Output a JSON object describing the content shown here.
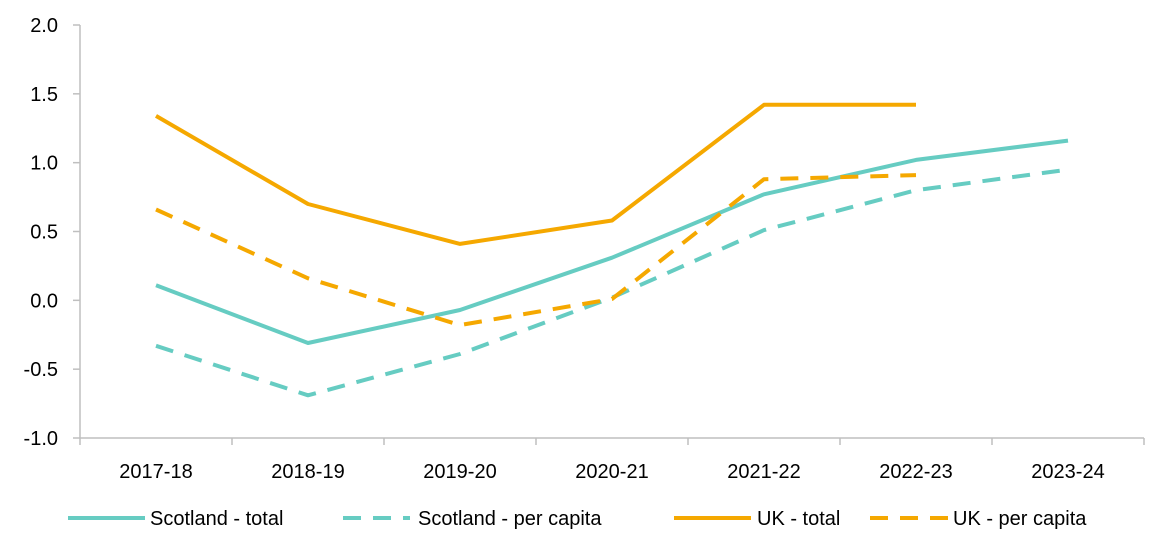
{
  "chart_data": {
    "type": "line",
    "categories": [
      "2017-18",
      "2018-19",
      "2019-20",
      "2020-21",
      "2021-22",
      "2022-23",
      "2023-24"
    ],
    "ylim": [
      -1.0,
      2.0
    ],
    "yticks": [
      "2.0",
      "1.5",
      "1.0",
      "0.5",
      "0.0",
      "-0.5",
      "-1.0"
    ],
    "ytick_values": [
      2.0,
      1.5,
      1.0,
      0.5,
      0.0,
      -0.5,
      -1.0
    ],
    "grid": false,
    "legend_position": "bottom",
    "series": [
      {
        "name": "Scotland - total",
        "color": "#66CCC2",
        "style": "solid",
        "values": [
          0.11,
          -0.31,
          -0.07,
          0.31,
          0.77,
          1.02,
          1.16
        ]
      },
      {
        "name": "Scotland - per capita",
        "color": "#66CCC2",
        "style": "dashed",
        "values": [
          -0.33,
          -0.69,
          -0.39,
          0.02,
          0.51,
          0.8,
          0.95
        ]
      },
      {
        "name": "UK - total",
        "color": "#F5A800",
        "style": "solid",
        "values": [
          1.34,
          0.7,
          0.41,
          0.58,
          1.42,
          1.42,
          null
        ]
      },
      {
        "name": "UK - per capita",
        "color": "#F5A800",
        "style": "dashed",
        "values": [
          0.66,
          0.16,
          -0.18,
          0.01,
          0.88,
          0.91,
          null
        ]
      }
    ]
  }
}
